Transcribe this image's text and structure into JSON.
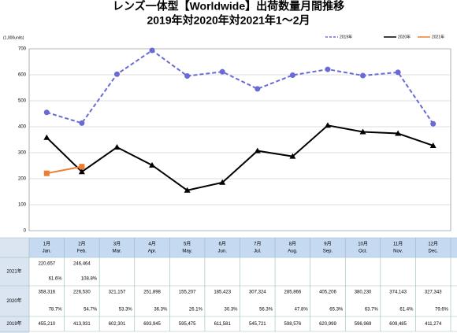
{
  "chart_data": {
    "type": "line",
    "title": "レンズ一体型【Worldwide】出荷数量月間推移",
    "subtitle": "2019年対2020年対2021年1～2月",
    "y_label": "(1,000units)",
    "categories": [
      "1月",
      "2月",
      "3月",
      "4月",
      "5月",
      "6月",
      "7月",
      "8月",
      "9月",
      "10月",
      "11月",
      "12月"
    ],
    "categories_en": [
      "Jan.",
      "Feb.",
      "Mar.",
      "Apr.",
      "May.",
      "Jun.",
      "Jul.",
      "Aug.",
      "Sep.",
      "Oct.",
      "Nov.",
      "Dec."
    ],
    "ylim": [
      0,
      700
    ],
    "yticks": [
      0,
      100,
      200,
      300,
      400,
      500,
      600,
      700
    ],
    "grid": true,
    "legend": "top-right",
    "series": [
      {
        "name": "2019年",
        "color": "#6a6ad6",
        "dash": true,
        "marker": "circle",
        "values": [
          455.21,
          413.931,
          602.301,
          693.945,
          595.475,
          611.581,
          545.721,
          598.576,
          620.999,
          596.969,
          609.485,
          411.274
        ],
        "value_labels": [
          "455,210",
          "413,931",
          "602,301",
          "693,945",
          "595,475",
          "611,581",
          "545,721",
          "598,576",
          "620,999",
          "596,969",
          "609,485",
          "411,274"
        ]
      },
      {
        "name": "2020年",
        "color": "#000000",
        "dash": false,
        "marker": "triangle",
        "values": [
          358.316,
          226.53,
          321.157,
          251.898,
          155.207,
          185.423,
          307.324,
          285.866,
          405.206,
          380.23,
          374.143,
          327.343
        ],
        "value_labels": [
          "358,316",
          "226,530",
          "321,157",
          "251,898",
          "155,207",
          "185,423",
          "307,324",
          "285,866",
          "405,206",
          "380,230",
          "374,143",
          "327,343"
        ],
        "ratio_labels": [
          "78.7%",
          "54.7%",
          "53.3%",
          "36.3%",
          "26.1%",
          "30.3%",
          "56.3%",
          "47.8%",
          "65.3%",
          "63.7%",
          "61.4%",
          "79.6%"
        ]
      },
      {
        "name": "2021年",
        "color": "#ed7d31",
        "dash": false,
        "marker": "square",
        "values": [
          220.657,
          246.464,
          null,
          null,
          null,
          null,
          null,
          null,
          null,
          null,
          null,
          null
        ],
        "value_labels": [
          "220,657",
          "246,464",
          null,
          null,
          null,
          null,
          null,
          null,
          null,
          null,
          null,
          null
        ],
        "ratio_labels": [
          "61.6%",
          "108.8%",
          null,
          null,
          null,
          null,
          null,
          null,
          null,
          null,
          null,
          null
        ]
      }
    ]
  }
}
